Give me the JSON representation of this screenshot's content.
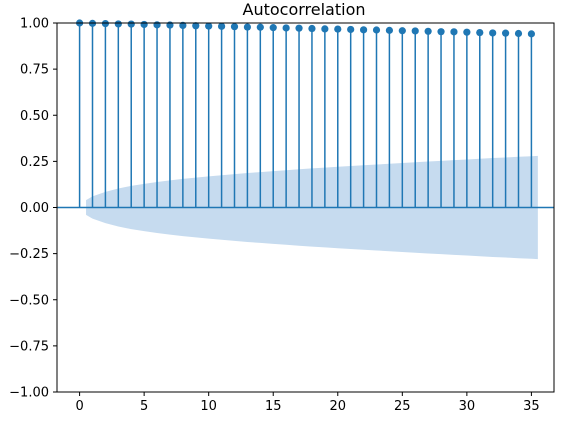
{
  "chart_data": {
    "type": "stem",
    "title": "Autocorrelation",
    "xlabel": "",
    "ylabel": "",
    "xlim": [
      -1.75,
      36.75
    ],
    "ylim": [
      -1.0,
      1.0
    ],
    "x_ticks": [
      0,
      5,
      10,
      15,
      20,
      25,
      30,
      35
    ],
    "x_tick_labels": [
      "0",
      "5",
      "10",
      "15",
      "20",
      "25",
      "30",
      "35"
    ],
    "y_ticks": [
      -1.0,
      -0.75,
      -0.5,
      -0.25,
      0.0,
      0.25,
      0.5,
      0.75,
      1.0
    ],
    "y_tick_labels": [
      "−1.00",
      "−0.75",
      "−0.50",
      "−0.25",
      "0.00",
      "0.25",
      "0.50",
      "0.75",
      "1.00"
    ],
    "grid": false,
    "series": [
      {
        "lags": [
          0,
          1,
          2,
          3,
          4,
          5,
          6,
          7,
          8,
          9,
          10,
          11,
          12,
          13,
          14,
          15,
          16,
          17,
          18,
          19,
          20,
          21,
          22,
          23,
          24,
          25,
          26,
          27,
          28,
          29,
          30,
          31,
          32,
          33,
          34,
          35
        ],
        "values": [
          1.0,
          0.998,
          0.997,
          0.995,
          0.994,
          0.992,
          0.99,
          0.989,
          0.987,
          0.985,
          0.983,
          0.982,
          0.98,
          0.978,
          0.977,
          0.975,
          0.973,
          0.972,
          0.97,
          0.968,
          0.967,
          0.965,
          0.963,
          0.962,
          0.96,
          0.958,
          0.957,
          0.955,
          0.953,
          0.952,
          0.95,
          0.948,
          0.946,
          0.945,
          0.943,
          0.941
        ]
      }
    ],
    "confidence_band": {
      "lags": [
        0.5,
        1,
        2,
        3,
        4,
        5,
        6,
        7,
        8,
        9,
        10,
        11,
        12,
        13,
        14,
        15,
        16,
        17,
        18,
        19,
        20,
        21,
        22,
        23,
        24,
        25,
        26,
        27,
        28,
        29,
        30,
        31,
        32,
        33,
        34,
        35,
        35.5
      ],
      "upper": [
        0.04,
        0.06,
        0.085,
        0.103,
        0.117,
        0.128,
        0.138,
        0.147,
        0.155,
        0.162,
        0.169,
        0.175,
        0.181,
        0.187,
        0.192,
        0.197,
        0.202,
        0.207,
        0.212,
        0.216,
        0.221,
        0.225,
        0.229,
        0.233,
        0.237,
        0.241,
        0.245,
        0.249,
        0.253,
        0.257,
        0.26,
        0.264,
        0.268,
        0.271,
        0.275,
        0.278,
        0.28
      ]
    },
    "colors": {
      "stem": "#1f77b4",
      "band": "#c6dbef",
      "axis": "#000000"
    }
  }
}
